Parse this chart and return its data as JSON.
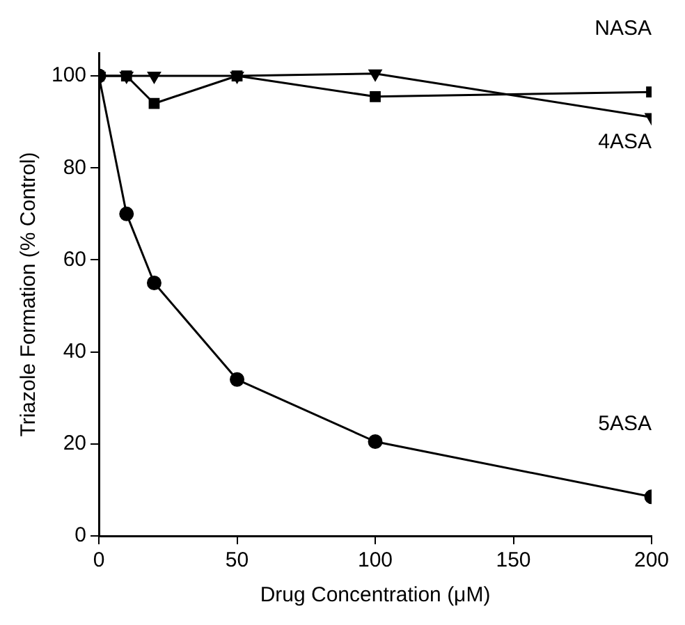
{
  "chart_data": {
    "type": "line",
    "xlabel": "Drug Concentration (μM)",
    "ylabel": "Triazole Formation (% Control)",
    "xlim": [
      0,
      200
    ],
    "xticks": [
      0,
      50,
      100,
      150,
      200
    ],
    "ylim": [
      0,
      105
    ],
    "yticks": [
      0,
      20,
      40,
      60,
      80,
      100
    ],
    "grid": false,
    "legend": false,
    "line_style": "solid",
    "series": [
      {
        "name": "NASA",
        "color": "#000000",
        "marker": "square",
        "x": [
          0,
          10,
          20,
          50,
          100,
          200
        ],
        "values": [
          100,
          100,
          94,
          100,
          95.5,
          96.5
        ]
      },
      {
        "name": "5ASA",
        "color": "#000000",
        "marker": "circle",
        "x": [
          0,
          10,
          20,
          50,
          100,
          200
        ],
        "values": [
          100,
          70,
          55,
          34,
          20.5,
          8.5
        ]
      },
      {
        "name": "4ASA",
        "color": "#000000",
        "marker": "triangle",
        "x": [
          0,
          10,
          20,
          50,
          100,
          200
        ],
        "values": [
          100,
          100,
          100,
          100,
          100.5,
          91
        ]
      }
    ]
  }
}
